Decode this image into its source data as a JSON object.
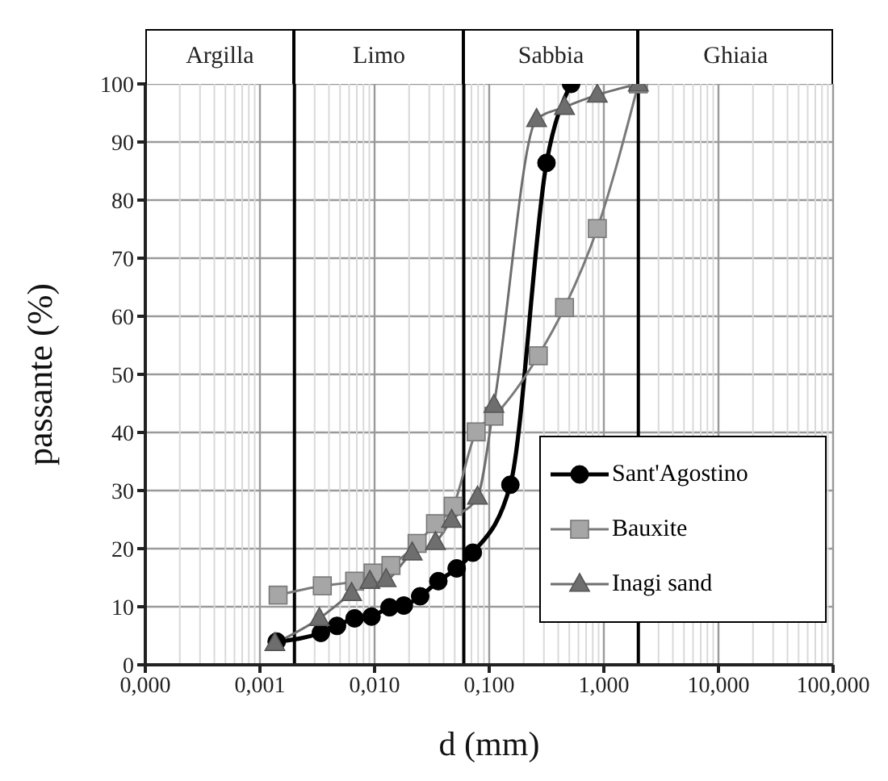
{
  "chart_data": {
    "type": "line",
    "xlabel": "d (mm)",
    "ylabel": "passante (%)",
    "log": "x",
    "xlim": [
      0.0001,
      100
    ],
    "xticks": [
      {
        "value": 0.0001,
        "label": "0,000"
      },
      {
        "value": 0.001,
        "label": "0,001"
      },
      {
        "value": 0.01,
        "label": "0,010"
      },
      {
        "value": 0.1,
        "label": "0,100"
      },
      {
        "value": 1,
        "label": "1,000"
      },
      {
        "value": 10,
        "label": "10,000"
      },
      {
        "value": 100,
        "label": "100,000"
      }
    ],
    "ylim": [
      0,
      100
    ],
    "yticks": [
      0,
      10,
      20,
      30,
      40,
      50,
      60,
      70,
      80,
      90,
      100
    ],
    "grid": true,
    "legend": "bottom right",
    "ref_lines": [
      {
        "axis": "x",
        "value": 0.002,
        "color": "#000000"
      },
      {
        "axis": "x",
        "value": 0.06,
        "color": "#000000"
      },
      {
        "axis": "x",
        "value": 2,
        "color": "#000000"
      }
    ],
    "annotations": [
      "Argilla",
      "Limo",
      "Sabbia",
      "Ghiaia"
    ],
    "series": [
      {
        "name": "Sant'Agostino",
        "color": "#000000",
        "marker": "circle",
        "x": [
          0.0014,
          0.0034,
          0.0047,
          0.0067,
          0.0094,
          0.0135,
          0.018,
          0.025,
          0.036,
          0.052,
          0.072,
          0.153,
          0.316,
          0.518
        ],
        "values": [
          4,
          5.5,
          6.7,
          8,
          8.3,
          9.9,
          10.2,
          11.8,
          14.4,
          16.6,
          19.3,
          31,
          86.4,
          100
        ]
      },
      {
        "name": "Bauxite",
        "color": "#a6a6a6",
        "marker": "square",
        "x": [
          0.00144,
          0.0035,
          0.0067,
          0.0097,
          0.0139,
          0.0235,
          0.034,
          0.0485,
          0.077,
          0.11,
          0.268,
          0.454,
          0.877,
          2
        ],
        "values": [
          12,
          13.6,
          14.4,
          15.8,
          17.1,
          20.9,
          24.3,
          27.3,
          40.1,
          42.8,
          53.2,
          61.5,
          75.1,
          100
        ]
      },
      {
        "name": "Inagi sand",
        "color": "#6e6e6e",
        "marker": "triangle",
        "x": [
          0.00135,
          0.0033,
          0.0063,
          0.0091,
          0.0126,
          0.0213,
          0.034,
          0.047,
          0.079,
          0.11,
          0.259,
          0.454,
          0.877,
          2
        ],
        "values": [
          3.7,
          8,
          12.3,
          14.4,
          14.7,
          19.3,
          21.1,
          24.9,
          28.9,
          44.7,
          93.9,
          96,
          98.1,
          100
        ]
      }
    ]
  }
}
